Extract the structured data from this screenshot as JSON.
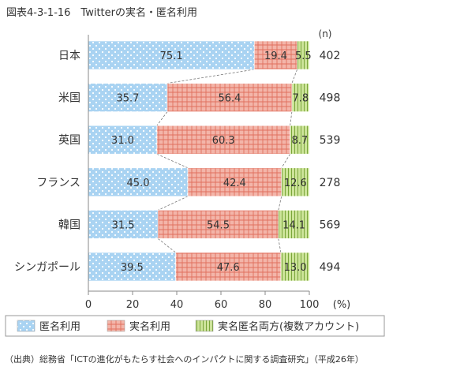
{
  "figure_title": "図表4-3-1-16　Twitterの実名・匿名利用",
  "n_header": "(n)",
  "unit_label": "(%)",
  "source_note": "（出典）総務省「ICTの進化がもたらす社会へのインパクトに関する調査研究」（平成26年）",
  "colors": {
    "anonymous": "#a9d3f2",
    "real_name": "#f3b5a9",
    "both": "#cde49a",
    "axis": "#888888",
    "connector": "#777777",
    "text": "#333333"
  },
  "chart_data": {
    "type": "bar",
    "orientation": "horizontal",
    "stacked": true,
    "title": "Twitterの実名・匿名利用",
    "xlim": [
      0,
      100
    ],
    "x_ticks": [
      0,
      20,
      40,
      60,
      80,
      100
    ],
    "categories": [
      "日本",
      "米国",
      "英国",
      "フランス",
      "韓国",
      "シンガポール"
    ],
    "n_values": [
      402,
      498,
      539,
      278,
      569,
      494
    ],
    "series": [
      {
        "name": "匿名利用",
        "values": [
          75.1,
          35.7,
          31.0,
          45.0,
          31.5,
          39.5
        ]
      },
      {
        "name": "実名利用",
        "values": [
          19.4,
          56.4,
          60.3,
          42.4,
          54.5,
          47.6
        ]
      },
      {
        "name": "実名匿名両方(複数アカウント)",
        "values": [
          5.5,
          7.8,
          8.7,
          12.6,
          14.1,
          13.0
        ]
      }
    ],
    "value_labels": [
      [
        "75.1",
        "35.7",
        "31.0",
        "45.0",
        "31.5",
        "39.5"
      ],
      [
        "19.4",
        "56.4",
        "60.3",
        "42.4",
        "54.5",
        "47.6"
      ],
      [
        "5.5",
        "7.8",
        "8.7",
        "12.6",
        "14.1",
        "13.0"
      ]
    ],
    "legend_position": "bottom",
    "grid": false
  }
}
